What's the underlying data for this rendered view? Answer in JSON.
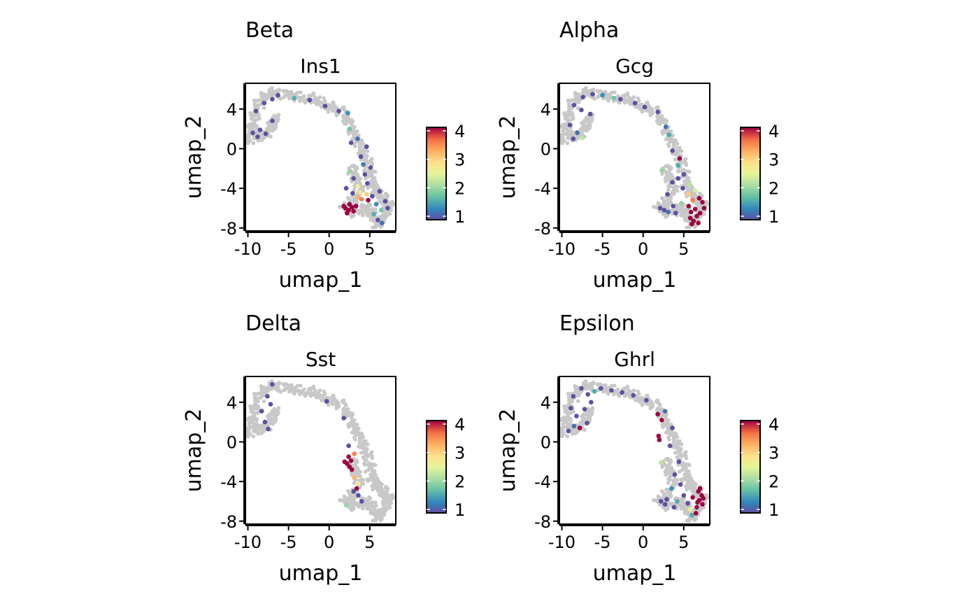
{
  "chart_data": [
    {
      "type": "scatter",
      "panel_title": "Beta",
      "title": "Ins1",
      "xlabel": "umap_1",
      "ylabel": "umap_2",
      "xlim": [
        -10.3,
        8.2
      ],
      "ylim": [
        -8.3,
        6.6
      ],
      "xticks": [
        "-10",
        "-5",
        "0",
        "5"
      ],
      "yticks": [
        "-8",
        "-4",
        "0",
        "4"
      ],
      "colorbar": {
        "min": 1,
        "max": 4,
        "ticks": [
          "1",
          "2",
          "3",
          "4"
        ]
      },
      "highlight": [
        {
          "x": 2.0,
          "y": -6.0,
          "v": 4
        },
        {
          "x": 2.4,
          "y": -6.2,
          "v": 4
        },
        {
          "x": 2.8,
          "y": -5.9,
          "v": 4
        },
        {
          "x": 1.8,
          "y": -5.8,
          "v": 4
        },
        {
          "x": 2.5,
          "y": -5.6,
          "v": 4
        },
        {
          "x": 3.0,
          "y": -6.3,
          "v": 4
        },
        {
          "x": 2.2,
          "y": -6.5,
          "v": 4
        },
        {
          "x": 3.3,
          "y": -5.8,
          "v": 4
        },
        {
          "x": 4.8,
          "y": -5.2,
          "v": 4
        },
        {
          "x": 3.6,
          "y": -4.9,
          "v": 3.2
        },
        {
          "x": 4.0,
          "y": -5.1,
          "v": 3.5
        },
        {
          "x": 3.8,
          "y": -4.4,
          "v": 2.8
        },
        {
          "x": 3.5,
          "y": -3.8,
          "v": 2.6
        },
        {
          "x": 4.6,
          "y": -4.6,
          "v": 3.0
        },
        {
          "x": 2.6,
          "y": -2.3,
          "v": 2.0
        },
        {
          "x": 5.3,
          "y": -4.8,
          "v": 1.0
        },
        {
          "x": 5.8,
          "y": -5.6,
          "v": 1.4
        },
        {
          "x": 6.4,
          "y": -6.2,
          "v": 1.8
        },
        {
          "x": 6.9,
          "y": -5.3,
          "v": 1.0
        },
        {
          "x": 6.0,
          "y": -7.2,
          "v": 1.0
        },
        {
          "x": 6.5,
          "y": -7.5,
          "v": 1.2
        },
        {
          "x": 5.5,
          "y": -6.6,
          "v": 1.6
        },
        {
          "x": 4.4,
          "y": -2.6,
          "v": 1.0
        },
        {
          "x": 4.2,
          "y": -1.6,
          "v": 1.3
        },
        {
          "x": 3.9,
          "y": -0.8,
          "v": 1.0
        },
        {
          "x": 3.0,
          "y": -3.0,
          "v": 1.0
        },
        {
          "x": 4.7,
          "y": -3.5,
          "v": 1.0
        },
        {
          "x": 2.1,
          "y": -4.0,
          "v": 1.0
        },
        {
          "x": 2.3,
          "y": 3.6,
          "v": 1.4
        },
        {
          "x": 1.2,
          "y": 3.8,
          "v": 1.0
        },
        {
          "x": -0.5,
          "y": 4.3,
          "v": 1.0
        },
        {
          "x": -2.4,
          "y": 4.9,
          "v": 1.0
        },
        {
          "x": -4.3,
          "y": 5.1,
          "v": 1.6
        },
        {
          "x": -6.3,
          "y": 5.4,
          "v": 1.0
        },
        {
          "x": -7.0,
          "y": 5.0,
          "v": 1.0
        },
        {
          "x": -8.0,
          "y": 4.6,
          "v": 1.0
        },
        {
          "x": -9.0,
          "y": 3.8,
          "v": 1.0
        },
        {
          "x": -9.4,
          "y": 1.6,
          "v": 1.0
        },
        {
          "x": -8.5,
          "y": 1.9,
          "v": 1.0
        },
        {
          "x": -7.8,
          "y": 1.5,
          "v": 1.0
        },
        {
          "x": -8.8,
          "y": 1.2,
          "v": 1.0
        },
        {
          "x": -7.0,
          "y": 2.8,
          "v": 1.0
        },
        {
          "x": 2.5,
          "y": 2.0,
          "v": 1.8
        },
        {
          "x": 2.7,
          "y": 0.6,
          "v": 1.0
        },
        {
          "x": 3.5,
          "y": 1.0,
          "v": 1.2
        },
        {
          "x": 4.6,
          "y": 0.2,
          "v": 1.0
        },
        {
          "x": 5.1,
          "y": -1.9,
          "v": 1.0
        },
        {
          "x": 6.2,
          "y": -4.3,
          "v": 1.0
        },
        {
          "x": 7.2,
          "y": -6.0,
          "v": 1.0
        },
        {
          "x": 2.9,
          "y": -4.5,
          "v": 1.0
        }
      ]
    },
    {
      "type": "scatter",
      "panel_title": "Alpha",
      "title": "Gcg",
      "xlabel": "umap_1",
      "ylabel": "umap_2",
      "xlim": [
        -10.3,
        8.2
      ],
      "ylim": [
        -8.3,
        6.6
      ],
      "xticks": [
        "-10",
        "-5",
        "0",
        "5"
      ],
      "yticks": [
        "-8",
        "-4",
        "0",
        "4"
      ],
      "colorbar": {
        "min": 1,
        "max": 4,
        "ticks": [
          "1",
          "2",
          "3",
          "4"
        ]
      },
      "highlight": [
        {
          "x": 5.8,
          "y": -7.0,
          "v": 4
        },
        {
          "x": 6.2,
          "y": -7.3,
          "v": 4
        },
        {
          "x": 6.6,
          "y": -6.8,
          "v": 4
        },
        {
          "x": 5.9,
          "y": -6.4,
          "v": 4
        },
        {
          "x": 6.4,
          "y": -6.1,
          "v": 4
        },
        {
          "x": 7.0,
          "y": -6.5,
          "v": 4
        },
        {
          "x": 6.0,
          "y": -7.6,
          "v": 4
        },
        {
          "x": 6.8,
          "y": -7.5,
          "v": 4
        },
        {
          "x": 7.3,
          "y": -5.4,
          "v": 4
        },
        {
          "x": 6.9,
          "y": -5.0,
          "v": 4
        },
        {
          "x": 7.5,
          "y": -6.0,
          "v": 4
        },
        {
          "x": 5.6,
          "y": -5.8,
          "v": 4
        },
        {
          "x": 6.1,
          "y": -5.2,
          "v": 3.5
        },
        {
          "x": 5.6,
          "y": -4.6,
          "v": 3.0
        },
        {
          "x": 6.4,
          "y": -4.2,
          "v": 2.4
        },
        {
          "x": 4.7,
          "y": -5.5,
          "v": 2.0
        },
        {
          "x": 5.7,
          "y": -3.6,
          "v": 2.2
        },
        {
          "x": 4.5,
          "y": -1.0,
          "v": 4
        },
        {
          "x": 4.3,
          "y": -1.7,
          "v": 1.6
        },
        {
          "x": 3.6,
          "y": -0.2,
          "v": 1.0
        },
        {
          "x": 2.3,
          "y": -2.2,
          "v": 2.0
        },
        {
          "x": 2.1,
          "y": -6.0,
          "v": 1.0
        },
        {
          "x": 2.6,
          "y": -6.2,
          "v": 1.0
        },
        {
          "x": 3.1,
          "y": -6.4,
          "v": 1.2
        },
        {
          "x": 3.7,
          "y": -5.8,
          "v": 1.0
        },
        {
          "x": 4.0,
          "y": -6.5,
          "v": 1.0
        },
        {
          "x": 3.0,
          "y": -4.6,
          "v": 1.0
        },
        {
          "x": 4.3,
          "y": -3.0,
          "v": 1.0
        },
        {
          "x": 5.0,
          "y": -2.6,
          "v": 1.0
        },
        {
          "x": 1.8,
          "y": 3.7,
          "v": 1.0
        },
        {
          "x": 2.8,
          "y": 2.2,
          "v": 1.2
        },
        {
          "x": 3.2,
          "y": 1.4,
          "v": 1.6
        },
        {
          "x": 0.2,
          "y": 4.2,
          "v": 1.0
        },
        {
          "x": -1.0,
          "y": 4.6,
          "v": 1.0
        },
        {
          "x": -2.8,
          "y": 5.0,
          "v": 1.0
        },
        {
          "x": -3.6,
          "y": 5.1,
          "v": 1.8
        },
        {
          "x": -5.0,
          "y": 5.4,
          "v": 1.4
        },
        {
          "x": -6.2,
          "y": 5.5,
          "v": 1.0
        },
        {
          "x": -7.4,
          "y": 5.2,
          "v": 1.0
        },
        {
          "x": -8.5,
          "y": 4.4,
          "v": 1.0
        },
        {
          "x": -9.0,
          "y": 2.4,
          "v": 1.0
        },
        {
          "x": -8.1,
          "y": 1.6,
          "v": 1.2
        },
        {
          "x": -7.5,
          "y": 1.1,
          "v": 2.2
        },
        {
          "x": -8.6,
          "y": 1.0,
          "v": 1.0
        },
        {
          "x": -6.5,
          "y": 3.5,
          "v": 1.0
        },
        {
          "x": -7.6,
          "y": 3.9,
          "v": 1.0
        },
        {
          "x": 4.9,
          "y": -4.0,
          "v": 1.0
        },
        {
          "x": 3.6,
          "y": -3.4,
          "v": 1.0
        }
      ]
    },
    {
      "type": "scatter",
      "panel_title": "Delta",
      "title": "Sst",
      "xlabel": "umap_1",
      "ylabel": "umap_2",
      "xlim": [
        -10.3,
        8.2
      ],
      "ylim": [
        -8.3,
        6.6
      ],
      "xticks": [
        "-10",
        "-5",
        "0",
        "5"
      ],
      "yticks": [
        "-8",
        "-4",
        "0",
        "4"
      ],
      "colorbar": {
        "min": 1,
        "max": 4,
        "ticks": [
          "1",
          "2",
          "3",
          "4"
        ]
      },
      "highlight": [
        {
          "x": 2.2,
          "y": -2.2,
          "v": 4
        },
        {
          "x": 2.5,
          "y": -2.5,
          "v": 4
        },
        {
          "x": 1.9,
          "y": -2.0,
          "v": 4
        },
        {
          "x": 2.7,
          "y": -1.9,
          "v": 4
        },
        {
          "x": 2.4,
          "y": -1.5,
          "v": 4
        },
        {
          "x": 2.8,
          "y": -2.8,
          "v": 4
        },
        {
          "x": 3.1,
          "y": -1.2,
          "v": 3.5
        },
        {
          "x": 3.4,
          "y": -4.7,
          "v": 4
        },
        {
          "x": 3.1,
          "y": -3.6,
          "v": 3.2
        },
        {
          "x": 3.6,
          "y": -4.2,
          "v": 2.7
        },
        {
          "x": 3.0,
          "y": -5.0,
          "v": 1.0
        },
        {
          "x": 2.1,
          "y": -6.4,
          "v": 2.0
        },
        {
          "x": 4.0,
          "y": -6.0,
          "v": 1.0
        },
        {
          "x": 3.6,
          "y": -5.4,
          "v": 1.0
        },
        {
          "x": 2.4,
          "y": -0.4,
          "v": 1.0
        },
        {
          "x": -7.0,
          "y": 5.8,
          "v": 1.0
        },
        {
          "x": -7.6,
          "y": 4.6,
          "v": 1.0
        },
        {
          "x": -7.2,
          "y": 3.8,
          "v": 1.0
        },
        {
          "x": -8.3,
          "y": 3.1,
          "v": 1.0
        },
        {
          "x": -7.9,
          "y": 2.0,
          "v": 1.0
        },
        {
          "x": -7.5,
          "y": 1.3,
          "v": 1.0
        },
        {
          "x": -0.3,
          "y": 4.1,
          "v": 1.0
        },
        {
          "x": 1.8,
          "y": 2.4,
          "v": 1.0
        }
      ]
    },
    {
      "type": "scatter",
      "panel_title": "Epsilon",
      "title": "Ghrl",
      "xlabel": "umap_1",
      "ylabel": "umap_2",
      "xlim": [
        -10.3,
        8.2
      ],
      "ylim": [
        -8.3,
        6.6
      ],
      "xticks": [
        "-10",
        "-5",
        "0",
        "5"
      ],
      "yticks": [
        "-8",
        "-4",
        "0",
        "4"
      ],
      "colorbar": {
        "min": 1,
        "max": 4,
        "ticks": [
          "1",
          "2",
          "3",
          "4"
        ]
      },
      "highlight": [
        {
          "x": 6.8,
          "y": -5.0,
          "v": 4
        },
        {
          "x": 7.2,
          "y": -5.4,
          "v": 4
        },
        {
          "x": 6.9,
          "y": -5.9,
          "v": 4
        },
        {
          "x": 7.3,
          "y": -6.3,
          "v": 4
        },
        {
          "x": 6.6,
          "y": -6.6,
          "v": 4
        },
        {
          "x": 7.0,
          "y": -4.7,
          "v": 4
        },
        {
          "x": 7.4,
          "y": -5.7,
          "v": 4
        },
        {
          "x": 6.7,
          "y": -6.1,
          "v": 4
        },
        {
          "x": 6.1,
          "y": -5.6,
          "v": 4
        },
        {
          "x": 6.5,
          "y": -7.2,
          "v": 4
        },
        {
          "x": 1.9,
          "y": 0.6,
          "v": 4
        },
        {
          "x": 2.0,
          "y": 0.2,
          "v": 4
        },
        {
          "x": 1.8,
          "y": 2.8,
          "v": 4
        },
        {
          "x": 2.3,
          "y": 2.2,
          "v": 4
        },
        {
          "x": 2.2,
          "y": -2.1,
          "v": 2.2
        },
        {
          "x": -7.8,
          "y": 1.4,
          "v": 4
        },
        {
          "x": 5.8,
          "y": -6.8,
          "v": 2.6
        },
        {
          "x": 6.0,
          "y": -7.4,
          "v": 1.6
        },
        {
          "x": 5.5,
          "y": -6.2,
          "v": 1.0
        },
        {
          "x": 4.6,
          "y": -4.3,
          "v": 1.0
        },
        {
          "x": 3.9,
          "y": -3.3,
          "v": 1.0
        },
        {
          "x": 3.5,
          "y": -4.7,
          "v": 1.4
        },
        {
          "x": 2.9,
          "y": -5.8,
          "v": 1.0
        },
        {
          "x": 2.2,
          "y": -6.0,
          "v": 1.0
        },
        {
          "x": 2.7,
          "y": -6.3,
          "v": 1.0
        },
        {
          "x": 4.2,
          "y": -6.0,
          "v": 1.6
        },
        {
          "x": 4.4,
          "y": -2.0,
          "v": 1.0
        },
        {
          "x": 3.3,
          "y": -0.4,
          "v": 1.0
        },
        {
          "x": 3.6,
          "y": 1.4,
          "v": 1.0
        },
        {
          "x": 2.7,
          "y": 3.1,
          "v": 1.2
        },
        {
          "x": 0.4,
          "y": 4.2,
          "v": 1.0
        },
        {
          "x": -1.2,
          "y": 4.7,
          "v": 1.0
        },
        {
          "x": -2.6,
          "y": 5.0,
          "v": 1.0
        },
        {
          "x": -3.9,
          "y": 5.2,
          "v": 1.0
        },
        {
          "x": -5.2,
          "y": 5.4,
          "v": 1.0
        },
        {
          "x": -6.0,
          "y": 5.1,
          "v": 1.6
        },
        {
          "x": -6.8,
          "y": 4.8,
          "v": 1.0
        },
        {
          "x": -7.6,
          "y": 5.4,
          "v": 1.0
        },
        {
          "x": -8.6,
          "y": 4.6,
          "v": 1.0
        },
        {
          "x": -8.9,
          "y": 3.4,
          "v": 1.0
        },
        {
          "x": -8.2,
          "y": 2.6,
          "v": 1.0
        },
        {
          "x": -7.2,
          "y": 3.3,
          "v": 1.0
        },
        {
          "x": -6.4,
          "y": 4.0,
          "v": 1.0
        },
        {
          "x": -6.9,
          "y": 1.9,
          "v": 1.0
        },
        {
          "x": -9.2,
          "y": 1.1,
          "v": 1.0
        },
        {
          "x": -8.5,
          "y": 1.6,
          "v": 1.2
        },
        {
          "x": 5.0,
          "y": -5.4,
          "v": 1.0
        },
        {
          "x": 3.8,
          "y": -6.6,
          "v": 1.0
        }
      ]
    }
  ]
}
